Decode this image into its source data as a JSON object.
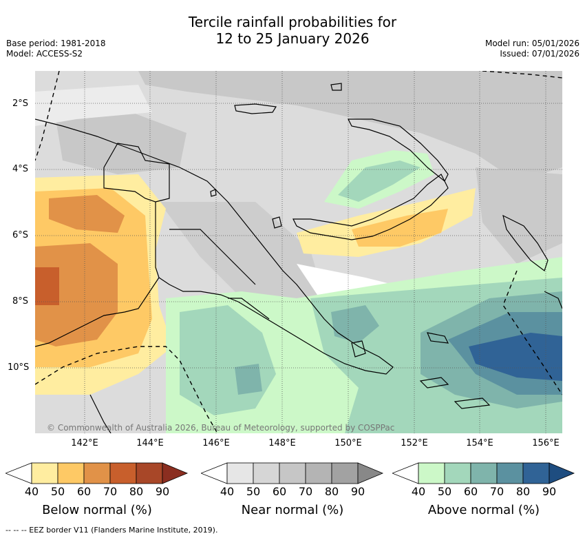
{
  "title": {
    "line1": "Tercile rainfall probabilities for",
    "line2": "12 to 25 January 2026"
  },
  "meta": {
    "base_period": "Base period: 1981-2018",
    "model": "Model: ACCESS-S2",
    "model_run": "Model run: 05/01/2026",
    "issued": "Issued: 07/01/2026"
  },
  "map": {
    "copyright": "© Commonwealth of Australia 2026, Bureau of Meteorology, supported by COSPPac",
    "lat_labels": [
      "2°S",
      "4°S",
      "6°S",
      "8°S",
      "10°S"
    ],
    "lon_labels": [
      "142°E",
      "144°E",
      "146°E",
      "148°E",
      "150°E",
      "152°E",
      "154°E",
      "156°E"
    ],
    "lon_range_deg_e": [
      140.5,
      156.5
    ],
    "lat_range_deg_s": [
      1.0,
      12.0
    ]
  },
  "legends": [
    {
      "caption": "Below normal (%)",
      "ticks": [
        "40",
        "50",
        "60",
        "70",
        "80",
        "90"
      ],
      "colors": [
        "#ffffff",
        "#ffeda0",
        "#fec965",
        "#e19248",
        "#c85f2c",
        "#a84728",
        "#8b2e20"
      ]
    },
    {
      "caption": "Near normal (%)",
      "ticks": [
        "40",
        "50",
        "60",
        "70",
        "80",
        "90"
      ],
      "colors": [
        "#ffffff",
        "#e6e6e6",
        "#d6d6d6",
        "#c6c6c6",
        "#b4b4b4",
        "#a2a2a2",
        "#888888"
      ]
    },
    {
      "caption": "Above normal (%)",
      "ticks": [
        "40",
        "50",
        "60",
        "70",
        "80",
        "90"
      ],
      "colors": [
        "#ffffff",
        "#ccf8c8",
        "#a3d7bb",
        "#7fb4ab",
        "#5b91a0",
        "#306396",
        "#1e4d80"
      ]
    }
  ],
  "footer": "--  --  -- EEZ border V11 (Flanders Marine Institute, 2019)."
}
